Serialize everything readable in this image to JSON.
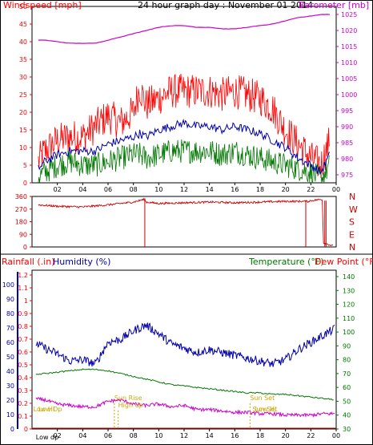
{
  "colors": {
    "wind_speed": "#ff0000",
    "wind_avg": "#0000aa",
    "wind_lull": "#007700",
    "barometer": "#cc00cc",
    "direction": "#cc0000",
    "rain": "#ff0000",
    "humidity": "#0000aa",
    "temperature": "#007700",
    "dew_point": "#cc00cc",
    "annotation": "#ccaa00"
  },
  "chart_data": [
    {
      "type": "line",
      "title": "24 hour graph day : November 01 2014",
      "left_label": "Windspeed [mph]",
      "right_label": "Barometer [mb]",
      "x_ticks": [
        "02",
        "04",
        "06",
        "08",
        "10",
        "12",
        "14",
        "16",
        "18",
        "20",
        "22",
        "00"
      ],
      "y_left_ticks": [
        "0",
        "5",
        "10",
        "15",
        "20",
        "25",
        "30",
        "35",
        "40",
        "45",
        "50"
      ],
      "y_right_ticks": [
        "975",
        "980",
        "985",
        "990",
        "995",
        "1000",
        "1005",
        "1010",
        "1015",
        "1020",
        "1025"
      ],
      "ylim_left": [
        0,
        50
      ],
      "ylim_right": [
        972.5,
        1027.5
      ],
      "x": [
        0.5,
        1,
        2,
        3,
        4,
        5,
        6,
        7,
        8,
        8.5,
        9,
        10,
        11,
        12,
        13,
        14,
        15,
        16,
        17,
        18,
        19,
        20,
        21,
        22,
        22.8,
        23.5
      ],
      "series": [
        {
          "name": "Windspeed",
          "axis": "left",
          "color_key": "wind_speed",
          "values": [
            6,
            9,
            12,
            13,
            13,
            16,
            19,
            17,
            20,
            27,
            22,
            24,
            26,
            26,
            26,
            26,
            25,
            26,
            25,
            24,
            21,
            15,
            11,
            7,
            5,
            12
          ]
        },
        {
          "name": "Wind average",
          "axis": "left",
          "color_key": "wind_avg",
          "values": [
            4,
            6,
            8,
            9,
            9,
            9,
            11,
            12,
            13,
            14,
            13,
            15,
            16,
            17,
            16,
            16,
            15,
            16,
            15,
            14,
            12,
            10,
            7,
            5,
            3,
            8
          ]
        },
        {
          "name": "Wind lull",
          "axis": "left",
          "color_key": "wind_lull",
          "values": [
            2,
            3,
            5,
            6,
            5,
            5,
            6,
            7,
            8,
            8,
            7,
            8,
            9,
            9,
            9,
            9,
            8,
            9,
            8,
            7,
            6,
            5,
            4,
            3,
            1,
            5
          ]
        },
        {
          "name": "Barometer",
          "axis": "right",
          "color_key": "barometer",
          "values": [
            1017,
            1017,
            1016.5,
            1016,
            1016,
            1016,
            1017,
            1018,
            1019,
            1019.5,
            1020,
            1021,
            1021.5,
            1021.5,
            1021,
            1021,
            1020.5,
            1020.5,
            1021,
            1021.5,
            1022,
            1023,
            1024,
            1024.5,
            1025,
            1025
          ]
        }
      ]
    },
    {
      "type": "line",
      "right_labels": [
        "N",
        "W",
        "S",
        "E",
        "N"
      ],
      "y_left_ticks": [
        "360",
        "270",
        "180",
        "90",
        "0"
      ],
      "ylim": [
        0,
        360
      ],
      "x": [
        0.5,
        2,
        4,
        6,
        8,
        8.9,
        9,
        10,
        12,
        14,
        16,
        18,
        20,
        21.8,
        22,
        22.9,
        23,
        23.8
      ],
      "values": [
        300,
        290,
        285,
        300,
        320,
        340,
        320,
        310,
        315,
        320,
        315,
        320,
        325,
        325,
        330,
        340,
        30,
        5
      ],
      "spikes_to_zero_at_hour": [
        8.9,
        21.6,
        23.1,
        23.2
      ]
    },
    {
      "type": "line",
      "left_label_rain": "Rainfall (.in)",
      "left_label_humidity": "Humidity (%)",
      "right_label_temp": "Temperature (°F)",
      "right_label_dew": "Dew Point (°F)",
      "x_ticks": [
        "02",
        "04",
        "06",
        "08",
        "10",
        "12",
        "14",
        "16",
        "18",
        "20",
        "22",
        "00"
      ],
      "rain_ticks": [
        "0",
        "0.1",
        "0.2",
        "0.3",
        "0.4",
        "0.5",
        "0.6",
        "0.7",
        "0.8",
        "0.9",
        "1",
        "1.1",
        "1.2"
      ],
      "humidity_ticks": [
        "0",
        "10",
        "20",
        "30",
        "40",
        "50",
        "60",
        "70",
        "80",
        "90",
        "100"
      ],
      "temp_ticks": [
        "30",
        "40",
        "50",
        "60",
        "70",
        "80",
        "90",
        "100",
        "110",
        "120",
        "130",
        "140"
      ],
      "ylim_humidity": [
        0,
        100
      ],
      "ylim_temp": [
        30,
        140
      ],
      "x": [
        0,
        1,
        2,
        3,
        4,
        5,
        6,
        7,
        8,
        9,
        10,
        11,
        12,
        13,
        14,
        15,
        16,
        17,
        18,
        19,
        20,
        21,
        22,
        23,
        24
      ],
      "series": [
        {
          "name": "Humidity",
          "axis": "left",
          "color_key": "humidity",
          "values": [
            61,
            56,
            52,
            47,
            48,
            45,
            60,
            62,
            68,
            72,
            66,
            59,
            56,
            53,
            55,
            53,
            51,
            49,
            47,
            45,
            48,
            55,
            60,
            65,
            70
          ]
        },
        {
          "name": "Temperature",
          "axis": "right",
          "color_key": "temperature",
          "values": [
            69,
            70,
            71,
            72,
            73,
            73,
            72,
            70,
            68,
            66,
            64,
            62,
            61,
            60,
            59,
            58,
            57,
            56,
            56,
            55,
            55,
            54,
            53,
            52,
            51
          ]
        },
        {
          "name": "Dew Point",
          "axis": "right",
          "color_key": "dew_point",
          "values": [
            52,
            51,
            48,
            47,
            46,
            46,
            50,
            51,
            48,
            47,
            48,
            46,
            47,
            44,
            44,
            43,
            42,
            42,
            41,
            41,
            40,
            40,
            40,
            41,
            41
          ]
        }
      ],
      "rain_values": [
        0
      ],
      "annotations": [
        {
          "text": "Low Hi",
          "hour": 0.1,
          "pos": "bottom"
        },
        {
          "text": "Low Dp",
          "hour": 0.5,
          "pos": "bottom"
        },
        {
          "text": "Sun Rise",
          "hour": 6.5,
          "pos": "mid"
        },
        {
          "text": "High dp",
          "hour": 6.8,
          "pos": "mid2"
        },
        {
          "text": "Sun Set",
          "hour": 17.2,
          "pos": "mid"
        },
        {
          "text": "Low Hi",
          "hour": 17.6,
          "pos": "bottom"
        },
        {
          "text": "Sun Set",
          "hour": 17.4,
          "pos": "bottom"
        },
        {
          "text": "Low dp",
          "hour": 0.3,
          "pos": "bottom2"
        }
      ]
    }
  ]
}
